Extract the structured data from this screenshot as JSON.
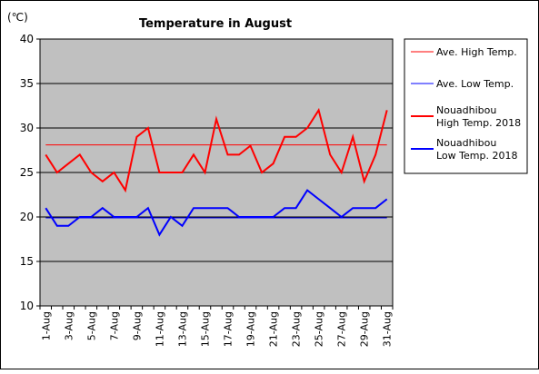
{
  "chart_data": {
    "type": "line",
    "title": "Temperature in August",
    "unit_label": "(℃)",
    "xlabel": "",
    "ylabel": "",
    "ylim": [
      10,
      40
    ],
    "yticks": [
      10,
      15,
      20,
      25,
      30,
      35,
      40
    ],
    "categories": [
      "1-Aug",
      "2-Aug",
      "3-Aug",
      "4-Aug",
      "5-Aug",
      "6-Aug",
      "7-Aug",
      "8-Aug",
      "9-Aug",
      "10-Aug",
      "11-Aug",
      "12-Aug",
      "13-Aug",
      "14-Aug",
      "15-Aug",
      "16-Aug",
      "17-Aug",
      "18-Aug",
      "19-Aug",
      "20-Aug",
      "21-Aug",
      "22-Aug",
      "23-Aug",
      "24-Aug",
      "25-Aug",
      "26-Aug",
      "27-Aug",
      "28-Aug",
      "29-Aug",
      "30-Aug",
      "31-Aug"
    ],
    "tick_labels": [
      "1-Aug",
      "3-Aug",
      "5-Aug",
      "7-Aug",
      "9-Aug",
      "11-Aug",
      "13-Aug",
      "15-Aug",
      "17-Aug",
      "19-Aug",
      "21-Aug",
      "23-Aug",
      "25-Aug",
      "27-Aug",
      "29-Aug",
      "31-Aug"
    ],
    "grid": true,
    "legend_position": "right",
    "series": [
      {
        "name": "Ave. High Temp.",
        "color": "#ff0000",
        "style": "thin",
        "values": [
          28.1,
          28.1,
          28.1,
          28.1,
          28.1,
          28.1,
          28.1,
          28.1,
          28.1,
          28.1,
          28.1,
          28.1,
          28.1,
          28.1,
          28.1,
          28.1,
          28.1,
          28.1,
          28.1,
          28.1,
          28.1,
          28.1,
          28.1,
          28.1,
          28.1,
          28.1,
          28.1,
          28.1,
          28.1,
          28.1,
          28.1
        ]
      },
      {
        "name": "Ave. Low Temp.",
        "color": "#0000ff",
        "style": "thin",
        "values": [
          19.9,
          19.9,
          19.9,
          19.9,
          19.9,
          19.9,
          19.9,
          19.9,
          19.9,
          19.9,
          19.9,
          19.9,
          19.9,
          19.9,
          19.9,
          19.9,
          19.9,
          19.9,
          19.9,
          19.9,
          19.9,
          19.9,
          19.9,
          19.9,
          19.9,
          19.9,
          19.9,
          19.9,
          19.9,
          19.9,
          19.9
        ]
      },
      {
        "name": "Nouadhibou High Temp. 2018",
        "name_lines": [
          "Nouadhibou",
          "High Temp. 2018"
        ],
        "color": "#ff0000",
        "style": "thick",
        "values": [
          27,
          25,
          26,
          27,
          25,
          24,
          25,
          23,
          29,
          30,
          25,
          25,
          25,
          27,
          25,
          31,
          27,
          27,
          28,
          25,
          26,
          29,
          29,
          30,
          32,
          27,
          25,
          29,
          24,
          27,
          32
        ]
      },
      {
        "name": "Nouadhibou Low Temp. 2018",
        "name_lines": [
          "Nouadhibou",
          "Low Temp. 2018"
        ],
        "color": "#0000ff",
        "style": "thick",
        "values": [
          21,
          19,
          19,
          20,
          20,
          21,
          20,
          20,
          20,
          21,
          18,
          20,
          19,
          21,
          21,
          21,
          21,
          20,
          20,
          20,
          20,
          21,
          21,
          23,
          22,
          21,
          20,
          21,
          21,
          21,
          22
        ]
      }
    ]
  }
}
